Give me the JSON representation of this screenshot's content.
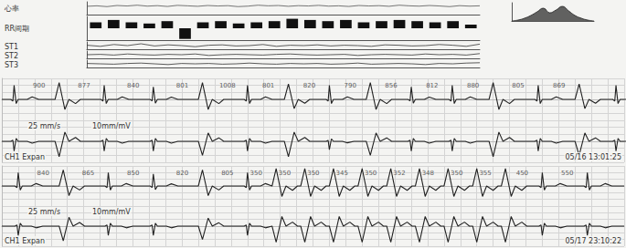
{
  "chart_data": [
    {
      "type": "line",
      "title": "心率",
      "color": "#555555",
      "grid": false,
      "tick_labels": false,
      "values": [
        92,
        95,
        90,
        97,
        94,
        99,
        93,
        96,
        91,
        98,
        95,
        92,
        97,
        94,
        96,
        90,
        93,
        99,
        95,
        97,
        92,
        96,
        94,
        98,
        93,
        95,
        91,
        97,
        94,
        96,
        92,
        99,
        95,
        93,
        97,
        94,
        90,
        96,
        93,
        95
      ],
      "ylim": [
        40,
        120
      ],
      "yticks": [
        40,
        80,
        120
      ]
    },
    {
      "type": "bar",
      "title": "RR间期",
      "color": "#111111",
      "grid": false,
      "tick_labels": false,
      "categories": [
        null,
        null,
        null,
        null,
        null,
        null,
        null,
        null,
        null,
        null,
        null,
        null,
        null,
        null,
        null,
        null,
        null,
        null,
        null,
        null,
        null,
        null
      ],
      "values": [
        0.5,
        0.7,
        0.5,
        0.4,
        0.6,
        -0.9,
        0.5,
        0.6,
        0.4,
        0.5,
        0.6,
        0.8,
        0.7,
        0.6,
        0.7,
        0.5,
        0.6,
        0.7,
        0.6,
        0.5,
        0.6,
        0.3
      ],
      "ylim": [
        -1,
        1
      ],
      "yticks": [
        -1,
        0,
        1
      ]
    },
    {
      "type": "line",
      "title": "ST1",
      "color": "#333333",
      "grid": false,
      "tick_labels": false,
      "values": [
        0.1,
        -0.2,
        0.3,
        0,
        0.5,
        -0.1,
        0.2,
        0,
        -0.3,
        0.1,
        0.2,
        -0.1,
        0,
        0.3,
        -0.2,
        0.1,
        0,
        0.2,
        -0.1,
        0.1,
        0,
        -0.2,
        0.2,
        0.1,
        -0.1,
        0,
        0.3,
        0.1,
        -0.2,
        0.4
      ],
      "ylim": [
        -1,
        1
      ],
      "yticks": [
        -1,
        0,
        1
      ]
    },
    {
      "type": "line",
      "title": "ST2",
      "color": "#333333",
      "grid": false,
      "tick_labels": false,
      "values": [
        0,
        0.1,
        -0.1,
        0.2,
        0,
        -0.1,
        0.1,
        0,
        0.2,
        -0.2,
        0,
        0.1,
        0,
        -0.1,
        0.1,
        0.2,
        0,
        -0.1,
        0,
        0.1,
        -0.2,
        0,
        0.1,
        0,
        -0.1,
        0.2,
        0,
        0.1,
        -0.1,
        0.3
      ],
      "ylim": [
        -1,
        1
      ],
      "yticks": [
        -1,
        0,
        1
      ]
    },
    {
      "type": "line",
      "title": "ST3",
      "color": "#333333",
      "grid": false,
      "tick_labels": false,
      "values": [
        0.1,
        0,
        -0.1,
        0.1,
        0.2,
        0,
        -0.2,
        0.1,
        0,
        0.1,
        -0.1,
        0,
        0.2,
        0,
        -0.1,
        0.1,
        0,
        0.1,
        -0.1,
        0,
        0.2,
        -0.1,
        0,
        0.1,
        0,
        -0.2,
        0.1,
        0,
        0.2,
        0.3
      ],
      "ylim": [
        -1,
        1
      ],
      "yticks": [
        -1,
        0,
        1
      ]
    },
    {
      "type": "area",
      "color": "#222222",
      "grid": false,
      "tick_labels": false,
      "values": [
        0,
        1,
        3,
        6,
        10,
        14,
        9,
        12,
        16,
        11,
        6,
        3,
        1,
        0
      ],
      "ylim": [
        0,
        20
      ],
      "yticks": [
        0,
        20
      ]
    },
    {
      "type": "ecg",
      "title": "25 mm/s",
      "subtitle": "10mm/mV",
      "annotations": [
        "CH1 Expan",
        "05/16 13:01:25"
      ],
      "color": "#222222",
      "grid": true,
      "tick_labels": false,
      "xlim": [
        0,
        7.6
      ],
      "xticks": [
        0,
        0.2,
        0.4,
        0.6,
        0.8,
        1,
        1.2,
        1.4,
        1.6,
        1.8,
        2,
        2.2,
        2.4,
        2.6,
        2.8,
        3,
        3.2,
        3.4,
        3.6,
        3.8,
        4,
        4.2,
        4.4,
        4.6,
        4.8,
        5,
        5.2,
        5.4,
        5.6,
        5.8,
        6,
        6.2,
        6.4,
        6.6,
        6.8,
        7,
        7.2,
        7.4,
        7.6
      ],
      "ylim": [
        -1.5,
        1.5
      ],
      "yticks": [
        -1.5,
        -1,
        -0.5,
        0,
        0.5,
        1,
        1.5
      ],
      "beats": [
        {
          "t": 0.15,
          "type": "N",
          "amp": [
            1.0,
            -0.7
          ],
          "label": null
        },
        {
          "t": 0.7,
          "type": "V",
          "amp": [
            1.2,
            -1.1
          ],
          "label": "900"
        },
        {
          "t": 1.25,
          "type": "N",
          "amp": [
            1.0,
            -0.7
          ],
          "label": "877"
        },
        {
          "t": 1.85,
          "type": "N",
          "amp": [
            0.9,
            -0.7
          ],
          "label": "840"
        },
        {
          "t": 2.45,
          "type": "V",
          "amp": [
            1.2,
            -1.0
          ],
          "label": "801"
        },
        {
          "t": 3.0,
          "type": "N",
          "amp": [
            1.0,
            -0.7
          ],
          "label": "1008"
        },
        {
          "t": 3.5,
          "type": "V",
          "amp": [
            1.1,
            -1.1
          ],
          "label": "801"
        },
        {
          "t": 4.0,
          "type": "N",
          "amp": [
            1.0,
            -0.6
          ],
          "label": "820"
        },
        {
          "t": 4.5,
          "type": "V",
          "amp": [
            1.2,
            -1.0
          ],
          "label": "790"
        },
        {
          "t": 5.0,
          "type": "N",
          "amp": [
            0.9,
            -0.7
          ],
          "label": "856"
        },
        {
          "t": 5.5,
          "type": "N",
          "amp": [
            1.0,
            -0.7
          ],
          "label": "812"
        },
        {
          "t": 6.0,
          "type": "V",
          "amp": [
            1.2,
            -1.1
          ],
          "label": "880"
        },
        {
          "t": 6.55,
          "type": "N",
          "amp": [
            1.0,
            -0.7
          ],
          "label": "805"
        },
        {
          "t": 7.05,
          "type": "V",
          "amp": [
            1.1,
            -1.0
          ],
          "label": "869"
        },
        {
          "t": 7.5,
          "type": "N",
          "amp": [
            1.0,
            -0.7
          ],
          "label": null
        }
      ]
    },
    {
      "type": "ecg",
      "title": "25 mm/s",
      "subtitle": "10mm/mV",
      "annotations": [
        "CH1 Expan",
        "05/17 23:10:22"
      ],
      "color": "#222222",
      "grid": true,
      "tick_labels": false,
      "xlim": [
        0,
        7.6
      ],
      "xticks": [
        0,
        0.2,
        0.4,
        0.6,
        0.8,
        1,
        1.2,
        1.4,
        1.6,
        1.8,
        2,
        2.2,
        2.4,
        2.6,
        2.8,
        3,
        3.2,
        3.4,
        3.6,
        3.8,
        4,
        4.2,
        4.4,
        4.6,
        4.8,
        5,
        5.2,
        5.4,
        5.6,
        5.8,
        6,
        6.2,
        6.4,
        6.6,
        6.8,
        7,
        7.2,
        7.4,
        7.6
      ],
      "ylim": [
        -1.5,
        1.5
      ],
      "yticks": [
        -1.5,
        -1,
        -0.5,
        0,
        0.5,
        1,
        1.5
      ],
      "beats": [
        {
          "t": 0.2,
          "type": "N",
          "amp": [
            1.0,
            -0.7
          ],
          "label": null
        },
        {
          "t": 0.75,
          "type": "V",
          "amp": [
            1.2,
            -1.1
          ],
          "label": "840"
        },
        {
          "t": 1.3,
          "type": "N",
          "amp": [
            1.0,
            -0.7
          ],
          "label": "865"
        },
        {
          "t": 1.85,
          "type": "N",
          "amp": [
            0.9,
            -0.7
          ],
          "label": "850"
        },
        {
          "t": 2.45,
          "type": "V",
          "amp": [
            1.2,
            -1.0
          ],
          "label": "820"
        },
        {
          "t": 3.0,
          "type": "N",
          "amp": [
            1.0,
            -0.7
          ],
          "label": "805"
        },
        {
          "t": 3.35,
          "type": "V",
          "amp": [
            1.3,
            -1.2
          ],
          "label": "350"
        },
        {
          "t": 3.7,
          "type": "V",
          "amp": [
            1.3,
            -1.2
          ],
          "label": "350"
        },
        {
          "t": 4.05,
          "type": "V",
          "amp": [
            1.3,
            -1.2
          ],
          "label": "350"
        },
        {
          "t": 4.4,
          "type": "V",
          "amp": [
            1.3,
            -1.2
          ],
          "label": "345"
        },
        {
          "t": 4.75,
          "type": "V",
          "amp": [
            1.3,
            -1.2
          ],
          "label": "350"
        },
        {
          "t": 5.1,
          "type": "V",
          "amp": [
            1.3,
            -1.2
          ],
          "label": "352"
        },
        {
          "t": 5.45,
          "type": "V",
          "amp": [
            1.3,
            -1.2
          ],
          "label": "348"
        },
        {
          "t": 5.8,
          "type": "V",
          "amp": [
            1.3,
            -1.2
          ],
          "label": "350"
        },
        {
          "t": 6.15,
          "type": "V",
          "amp": [
            1.3,
            -1.2
          ],
          "label": "355"
        },
        {
          "t": 6.6,
          "type": "N",
          "amp": [
            1.0,
            -0.7
          ],
          "label": "450"
        },
        {
          "t": 7.15,
          "type": "N",
          "amp": [
            1.0,
            -0.7
          ],
          "label": "550"
        }
      ]
    }
  ]
}
